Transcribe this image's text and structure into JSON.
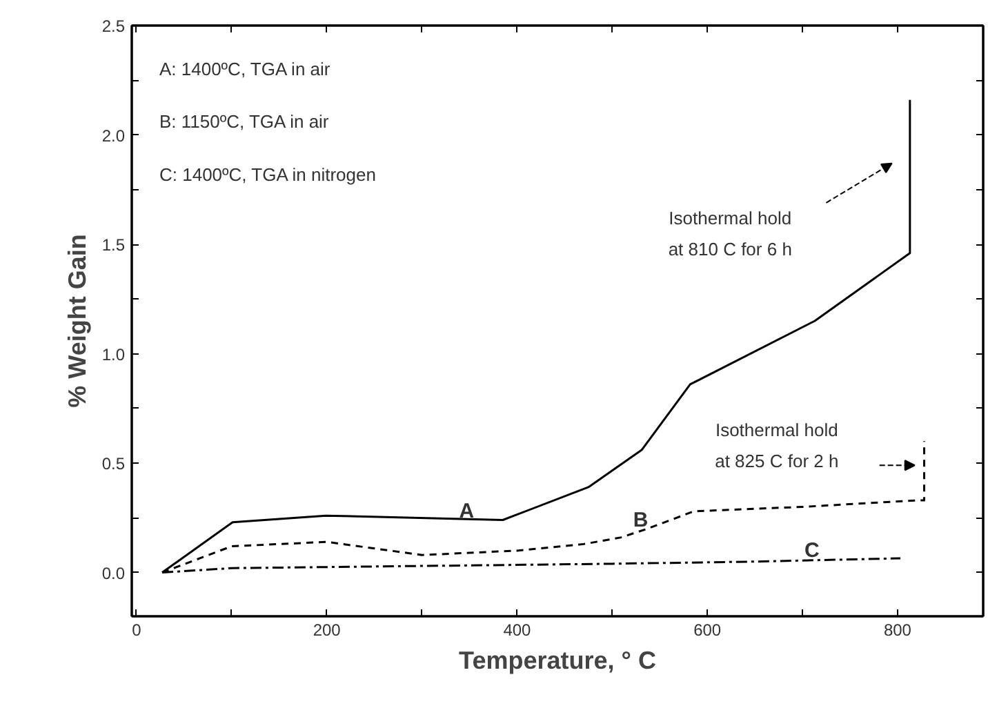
{
  "chart_data": {
    "type": "line",
    "xlabel": "Temperature, ° C",
    "ylabel": "% Weight Gain",
    "xlim": [
      -5,
      890
    ],
    "ylim": [
      -0.2,
      2.5
    ],
    "xticks": [
      0,
      {
        "value": 100,
        "label": null
      },
      200,
      {
        "value": 300,
        "label": null
      },
      400,
      {
        "value": 500,
        "label": null
      },
      600,
      {
        "value": 700,
        "label": null
      },
      800
    ],
    "yticks": [
      {
        "value": 0,
        "label": "0.0"
      },
      {
        "value": 0.25,
        "label": null
      },
      {
        "value": 0.5,
        "label": "0.5"
      },
      {
        "value": 0.75,
        "label": null
      },
      {
        "value": 1,
        "label": "1.0"
      },
      {
        "value": 1.25,
        "label": null
      },
      {
        "value": 1.5,
        "label": "1.5"
      },
      {
        "value": 1.75,
        "label": null
      },
      {
        "value": 2,
        "label": "2.0"
      },
      {
        "value": 2.25,
        "label": null
      },
      {
        "value": 2.5,
        "label": "2.5"
      }
    ],
    "grid": false,
    "series": [
      {
        "color": "#000000",
        "line_style": "solid",
        "x": [
          27,
          101,
          199,
          385,
          475,
          531,
          582,
          713,
          813,
          813
        ],
        "values": [
          0.0,
          0.23,
          0.26,
          0.24,
          0.39,
          0.56,
          0.86,
          1.15,
          1.46,
          2.16
        ]
      },
      {
        "color": "#000000",
        "line_style": "dashed",
        "x": [
          27,
          100,
          200,
          300,
          400,
          470,
          509,
          537,
          586,
          700,
          821,
          828,
          828
        ],
        "values": [
          0.0,
          0.12,
          0.14,
          0.08,
          0.1,
          0.13,
          0.16,
          0.2,
          0.28,
          0.3,
          0.33,
          0.33,
          0.6
        ]
      },
      {
        "color": "#000000",
        "line_style": "dashdot",
        "x": [
          27,
          100,
          300,
          500,
          650,
          803
        ],
        "values": [
          0.0,
          0.02,
          0.03,
          0.04,
          0.05,
          0.065
        ]
      }
    ],
    "annotations": [
      "A: 1400ºC, TGA in air",
      "B: 1150ºC, TGA in air",
      "C: 1400ºC, TGA in nitrogen",
      "A",
      "B",
      "C",
      "Isothermal hold\nat 810 C for 6 h",
      "Isothermal hold\nat 825 C for 2 h"
    ]
  }
}
